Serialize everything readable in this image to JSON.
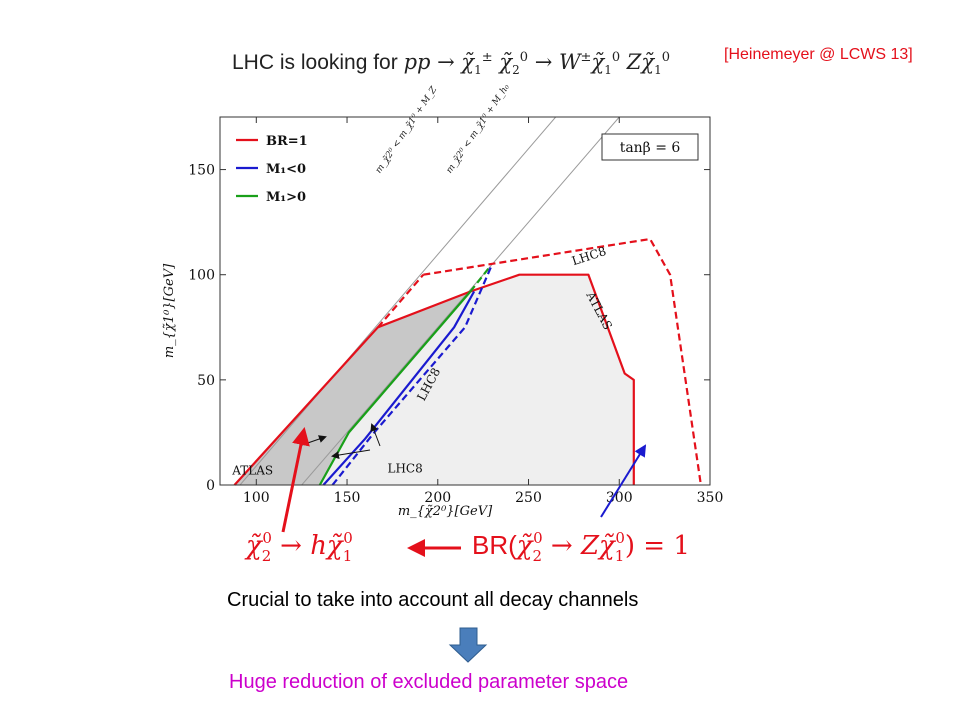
{
  "header": {
    "citation": "[Heinemeyer @ LCWS 13]",
    "title_text": "LHC is looking for"
  },
  "chart_data": {
    "type": "line",
    "xlabel": "m_{χ̃2⁰}[GeV]",
    "ylabel": "m_{χ̃1⁰}[GeV]",
    "xlim": [
      80,
      350
    ],
    "ylim": [
      0,
      175
    ],
    "x_ticks": [
      100,
      150,
      200,
      250,
      300,
      350
    ],
    "y_ticks": [
      0,
      50,
      100,
      150
    ],
    "grid": false,
    "legend_position": "top-left",
    "tanbeta_label": "tanβ = 6",
    "legend": [
      {
        "label": "BR=1",
        "color": "#e4101b"
      },
      {
        "label": "M₁<0",
        "color": "#1a1acf"
      },
      {
        "label": "M₁>0",
        "color": "#19a019"
      }
    ],
    "series": [
      {
        "name": "BR=1",
        "role": "ATLAS-solid",
        "color": "#e4101b",
        "style": "solid",
        "points": [
          [
            88,
            0
          ],
          [
            167,
            75
          ],
          [
            218,
            92
          ],
          [
            245,
            100
          ],
          [
            283,
            100
          ],
          [
            303,
            53
          ],
          [
            308,
            50
          ],
          [
            308,
            0
          ]
        ]
      },
      {
        "name": "BR=1",
        "role": "ATLAS-dashed",
        "color": "#e4101b",
        "style": "dashed",
        "points": [
          [
            167,
            75
          ],
          [
            192,
            100
          ]
        ]
      },
      {
        "name": "BR=1",
        "role": "LHC8-dashed",
        "color": "#e4101b",
        "style": "dashed",
        "points": [
          [
            192,
            100
          ],
          [
            317,
            117
          ],
          [
            328,
            100
          ],
          [
            345,
            0
          ]
        ]
      },
      {
        "name": "M₁>0",
        "color": "#19a019",
        "style": "solid",
        "points": [
          [
            135,
            0
          ],
          [
            151,
            25
          ],
          [
            218,
            92
          ]
        ]
      },
      {
        "name": "M₁>0",
        "color": "#19a019",
        "style": "dashed",
        "points": [
          [
            218,
            92
          ],
          [
            228,
            103
          ]
        ]
      },
      {
        "name": "M₁<0",
        "color": "#1a1acf",
        "style": "solid",
        "points": [
          [
            137,
            0
          ],
          [
            160,
            22
          ],
          [
            209,
            75
          ],
          [
            220,
            92
          ]
        ]
      },
      {
        "name": "M₁<0",
        "color": "#1a1acf",
        "style": "dashed",
        "points": [
          [
            142,
            0
          ],
          [
            165,
            25
          ],
          [
            215,
            75
          ],
          [
            230,
            105
          ]
        ]
      }
    ],
    "kinematic_lines": [
      {
        "label": "m_χ̃2⁰ < m_χ̃1⁰ + M_Z",
        "points": [
          [
            91,
            0
          ],
          [
            265,
            175
          ]
        ]
      },
      {
        "label": "m_χ̃2⁰ < m_χ̃1⁰ + M_h₀",
        "points": [
          [
            125,
            0
          ],
          [
            300,
            175
          ]
        ]
      }
    ],
    "annotations": [
      {
        "text": "LHC8",
        "x": 284,
        "y": 107,
        "rotate": -18
      },
      {
        "text": "ATLAS",
        "x": 287,
        "y": 82,
        "rotate": 62
      },
      {
        "text": "LHC8",
        "x": 197,
        "y": 47,
        "rotate": -62
      },
      {
        "text": "ATLAS",
        "x": 98,
        "y": 5,
        "rotate": 0
      },
      {
        "text": "LHC8",
        "x": 182,
        "y": 6,
        "rotate": 0
      }
    ]
  },
  "arrows": {
    "left_arrow_color": "#e4101b",
    "right_arrow_color": "#1a1acf",
    "mid_arrow_color": "#e4101b",
    "down_arrow_color": "#4a7ebb"
  },
  "bottom": {
    "decay_h_text": "χ̃₂⁰ → hχ̃₁⁰",
    "br_prefix": "BR(",
    "br_text": "BR(χ̃₂⁰ → Zχ̃₁⁰) = 1",
    "statement": "Crucial to take into account all decay channels",
    "conclusion": "Huge reduction of excluded parameter space"
  }
}
